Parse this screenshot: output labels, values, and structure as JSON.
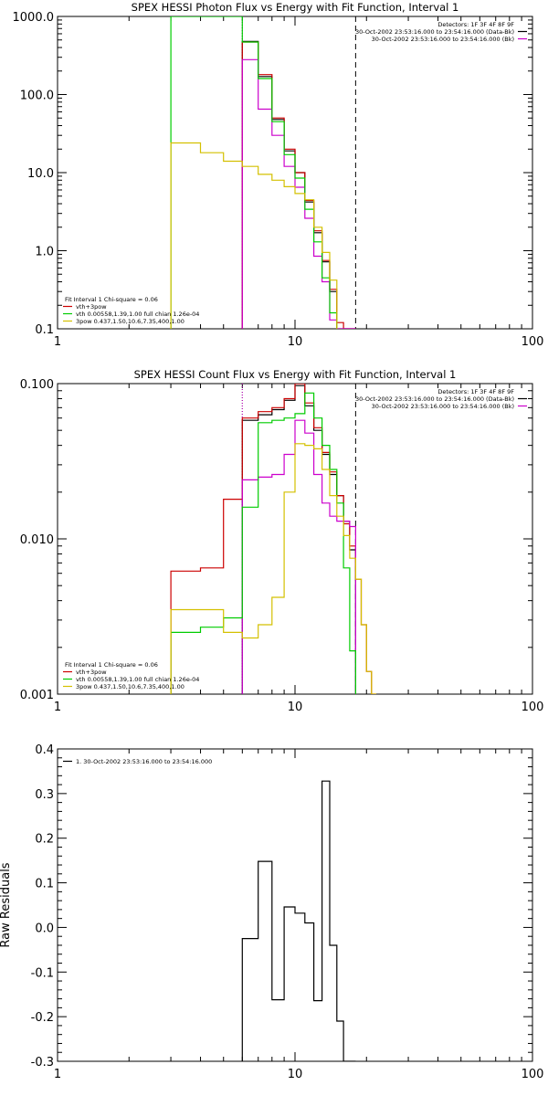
{
  "chart_data": [
    {
      "type": "line",
      "title": "SPEX HESSI Photon Flux vs Energy with Fit Function, Interval 1",
      "xlabel": "",
      "ylabel": "",
      "xscale": "log",
      "yscale": "log",
      "xlim": [
        1,
        100
      ],
      "ylim": [
        0.1,
        1000.0
      ],
      "x_tick_labels": [
        "1",
        "10",
        "100"
      ],
      "y_tick_labels": [
        "0.1",
        "1.0",
        "10.0",
        "100.0",
        "1000.0"
      ],
      "header_lines": [
        "Detectors: 1F 3F 4F 8F 9F",
        "30-Oct-2002 23:53:16.000 to 23:54:16.000 (Data-Bk)",
        "30-Oct-2002 23:53:16.000 to 23:54:16.000 (Bk)"
      ],
      "header_colors": [
        "#000000",
        "#000000",
        "#cc00cc"
      ],
      "legend_lines": [
        "Fit Interval 1    Chi-square = 0.06",
        "vth+3pow",
        "vth 0.00558,1.39,1.00  full chian 1.26e-04",
        "3pow 0.437,1.50,10.6,7.35,400,1.00"
      ],
      "legend_colors": [
        "#000000",
        "#cc0000",
        "#00cc00",
        "#d4c000"
      ],
      "vlines": [
        {
          "x": 6.0,
          "style": "dotted",
          "color": "#000000"
        },
        {
          "x": 6.0,
          "style": "dotted",
          "color": "#cc00cc"
        },
        {
          "x": 18.0,
          "style": "dashed",
          "color": "#000000"
        }
      ],
      "series": [
        {
          "color": "#000000",
          "edges": [
            6,
            7,
            8,
            9,
            10,
            11,
            12,
            13,
            14,
            15,
            16,
            17,
            18
          ],
          "values": [
            480,
            170,
            48,
            19,
            10,
            4.2,
            1.7,
            0.72,
            0.3,
            0.1,
            0.1,
            0.1
          ]
        },
        {
          "color": "#cc0000",
          "edges": [
            6,
            7,
            8,
            9,
            10,
            11,
            12,
            13,
            14,
            15,
            16,
            17,
            18
          ],
          "values": [
            470,
            180,
            50,
            20,
            10,
            4.4,
            1.8,
            0.75,
            0.32,
            0.12,
            0.1,
            0.1
          ]
        },
        {
          "color": "#cc00cc",
          "edges": [
            6,
            7,
            8,
            9,
            10,
            11,
            12,
            13,
            14,
            15,
            16,
            17,
            18
          ],
          "values": [
            280,
            65,
            30,
            12,
            6.5,
            2.6,
            0.85,
            0.4,
            0.13,
            0.1,
            0.1,
            0.1
          ]
        },
        {
          "color": "#00cc00",
          "edges": [
            3,
            4,
            5,
            6,
            7,
            8,
            9,
            10,
            11,
            12,
            13,
            14,
            15
          ],
          "values": [
            1000,
            1000,
            1000,
            470,
            160,
            45,
            17,
            8.5,
            3.4,
            1.3,
            0.45,
            0.16
          ]
        },
        {
          "color": "#d4c000",
          "edges": [
            3,
            4,
            5,
            6,
            7,
            8,
            9,
            10,
            11,
            12,
            13,
            14,
            15
          ],
          "values": [
            24,
            18,
            14,
            12,
            9.5,
            8.0,
            6.6,
            5.4,
            4.5,
            2.0,
            0.95,
            0.42
          ]
        }
      ]
    },
    {
      "type": "line",
      "title": "SPEX HESSI Count Flux vs Energy with Fit Function, Interval 1",
      "xlabel": "",
      "ylabel": "",
      "xscale": "log",
      "yscale": "log",
      "xlim": [
        1,
        100
      ],
      "ylim": [
        0.001,
        0.1
      ],
      "x_tick_labels": [
        "1",
        "10",
        "100"
      ],
      "y_tick_labels": [
        "0.001",
        "0.010",
        "0.100"
      ],
      "header_lines": [
        "Detectors: 1F 3F 4F 8F 9F",
        "30-Oct-2002 23:53:16.000 to 23:54:16.000 (Data-Bk)",
        "30-Oct-2002 23:53:16.000 to 23:54:16.000 (Bk)"
      ],
      "header_colors": [
        "#000000",
        "#000000",
        "#cc00cc"
      ],
      "legend_lines": [
        "Fit Interval 1    Chi-square = 0.06",
        "vth+3pow",
        "vth 0.00558,1.39,1.00  full chian 1.26e-04",
        "3pow 0.437,1.50,10.6,7.35,400,1.00"
      ],
      "legend_colors": [
        "#000000",
        "#cc0000",
        "#00cc00",
        "#d4c000"
      ],
      "vlines": [
        {
          "x": 6.0,
          "style": "dotted",
          "color": "#000000"
        },
        {
          "x": 6.0,
          "style": "dotted",
          "color": "#cc00cc"
        },
        {
          "x": 18.0,
          "style": "dashed",
          "color": "#000000"
        }
      ],
      "series": [
        {
          "color": "#000000",
          "edges": [
            6,
            7,
            8,
            9,
            10,
            11,
            12,
            13,
            14,
            15,
            16,
            17,
            18
          ],
          "values": [
            0.058,
            0.063,
            0.068,
            0.078,
            0.097,
            0.072,
            0.05,
            0.035,
            0.026,
            0.019,
            0.013,
            0.0085
          ]
        },
        {
          "color": "#cc0000",
          "edges": [
            3,
            4,
            5,
            6,
            7,
            8,
            9,
            10,
            11,
            12,
            13,
            14,
            15,
            16,
            17,
            18,
            19,
            20,
            21,
            22
          ],
          "values": [
            0.0062,
            0.0065,
            0.018,
            0.06,
            0.066,
            0.07,
            0.08,
            0.1,
            0.075,
            0.052,
            0.036,
            0.027,
            0.019,
            0.0125,
            0.009,
            0.0055,
            0.0028,
            0.0014,
            0.001
          ]
        },
        {
          "color": "#cc00cc",
          "edges": [
            6,
            7,
            8,
            9,
            10,
            11,
            12,
            13,
            14,
            15,
            16,
            17,
            18
          ],
          "values": [
            0.024,
            0.025,
            0.026,
            0.035,
            0.058,
            0.048,
            0.026,
            0.017,
            0.014,
            0.013,
            0.013,
            0.012
          ]
        },
        {
          "color": "#00cc00",
          "edges": [
            3,
            4,
            5,
            6,
            7,
            8,
            9,
            10,
            11,
            12,
            13,
            14,
            15,
            16,
            17,
            18
          ],
          "values": [
            0.0025,
            0.0027,
            0.0031,
            0.016,
            0.056,
            0.058,
            0.06,
            0.064,
            0.087,
            0.06,
            0.04,
            0.028,
            0.017,
            0.0065,
            0.0019
          ]
        },
        {
          "color": "#d4c000",
          "edges": [
            3,
            4,
            5,
            6,
            7,
            8,
            9,
            10,
            11,
            12,
            13,
            14,
            15,
            16,
            17,
            18,
            19,
            20,
            21,
            22
          ],
          "values": [
            0.0035,
            0.0035,
            0.0025,
            0.0023,
            0.0028,
            0.0042,
            0.02,
            0.041,
            0.04,
            0.038,
            0.028,
            0.019,
            0.014,
            0.0105,
            0.0075,
            0.0055,
            0.0028,
            0.0014,
            0.001
          ]
        }
      ]
    },
    {
      "type": "line",
      "title": "",
      "xlabel": "",
      "ylabel": "Raw Residuals",
      "xscale": "log",
      "yscale": "linear",
      "xlim": [
        1,
        100
      ],
      "ylim": [
        -0.3,
        0.4
      ],
      "x_tick_labels": [
        "1",
        "10",
        "100"
      ],
      "y_ticks": [
        -0.3,
        -0.2,
        -0.1,
        0.0,
        0.1,
        0.2,
        0.3,
        0.4
      ],
      "y_tick_labels": [
        "-0.3",
        "-0.2",
        "-0.1",
        "0.0",
        "0.1",
        "0.2",
        "0.3",
        "0.4"
      ],
      "legend_lines": [
        "1. 30-Oct-2002 23:53:16.000 to 23:54:16.000"
      ],
      "legend_colors": [
        "#000000"
      ],
      "series": [
        {
          "color": "#000000",
          "edges": [
            6,
            7,
            8,
            9,
            10,
            11,
            12,
            13,
            14,
            15,
            16,
            17,
            18
          ],
          "values": [
            -0.025,
            0.148,
            -0.162,
            0.046,
            0.032,
            0.01,
            -0.164,
            0.328,
            -0.04,
            -0.21,
            -0.3,
            -0.3
          ]
        }
      ]
    }
  ]
}
